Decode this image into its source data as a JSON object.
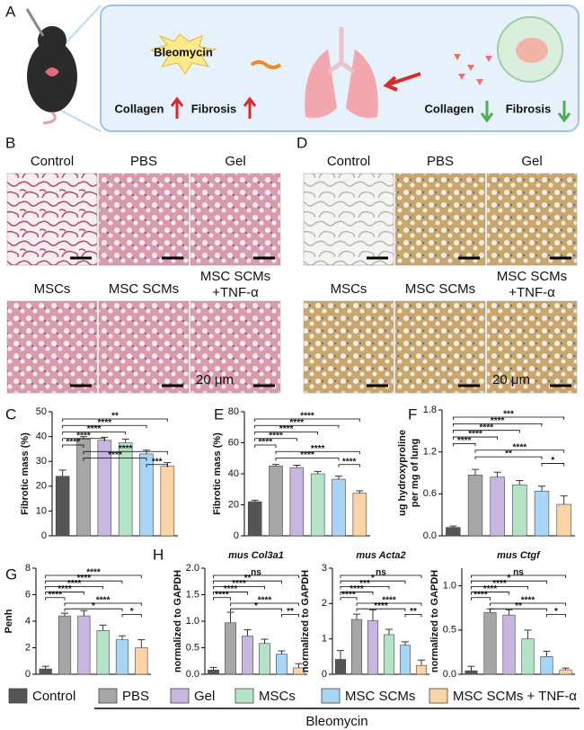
{
  "panel_labels": [
    "A",
    "B",
    "D"
  ],
  "panel_a": {
    "drug": "Bleomycin",
    "left_labels": [
      "Collagen",
      "Fibrosis"
    ],
    "right_labels": [
      "Collagen",
      "Fibrosis"
    ]
  },
  "panel_b": {
    "titles": [
      "Control",
      "PBS",
      "Gel",
      "MSCs",
      "MSC SCMs"
    ],
    "last_title": [
      "MSC SCMs",
      "+TNF-α"
    ],
    "scale_bar": "20 μm"
  },
  "panel_d": {
    "titles": [
      "Control",
      "PBS",
      "Gel",
      "MSCs",
      "MSC SCMs"
    ],
    "last_title": [
      "MSC SCMs",
      "+TNF-α"
    ],
    "scale_bar": "20 μm"
  },
  "legend": {
    "items": [
      {
        "name": "Control",
        "color": "#555555"
      },
      {
        "name": "PBS",
        "color": "#a6a6a6"
      },
      {
        "name": "Gel",
        "color": "#c9b6e0"
      },
      {
        "name": "MSCs",
        "color": "#b5e3c8"
      },
      {
        "name": "MSC SCMs",
        "color": "#a8d4f5"
      },
      {
        "name": "MSC SCMs + TNF-α",
        "color": "#fcd3a5"
      }
    ],
    "group": "Bleomycin"
  },
  "chart_data": [
    {
      "type": "bar",
      "panel": "C",
      "ylabel": [
        "Fibrotic mass (%)"
      ],
      "values": [
        24,
        39,
        38.5,
        37.5,
        33,
        28
      ],
      "errors": [
        2.5,
        1,
        1.2,
        1.5,
        1.5,
        1.5
      ],
      "ylim": [
        0,
        50
      ],
      "yticks": [
        0,
        10,
        20,
        30,
        40,
        50
      ],
      "significance": [
        "**",
        "****",
        "****",
        "****",
        "****",
        "****",
        "****",
        "***"
      ]
    },
    {
      "type": "bar",
      "panel": "E",
      "ylabel": [
        "Fibrotic mass (%)"
      ],
      "values": [
        22,
        45,
        44,
        40,
        36.5,
        27.5
      ],
      "errors": [
        1,
        1,
        1.5,
        1.5,
        2,
        1.5
      ],
      "ylim": [
        0,
        80
      ],
      "yticks": [
        0,
        20,
        40,
        60,
        80
      ],
      "significance": [
        "****",
        "****",
        "****",
        "****",
        "****",
        "****",
        "****",
        "****"
      ]
    },
    {
      "type": "bar",
      "panel": "F",
      "ylabel": [
        "ug hydroxyproline",
        "per mg of lung"
      ],
      "values": [
        0.12,
        0.87,
        0.84,
        0.73,
        0.64,
        0.45
      ],
      "errors": [
        0.02,
        0.08,
        0.07,
        0.06,
        0.07,
        0.12
      ],
      "ylim": [
        0,
        1.8
      ],
      "yticks": [
        {
          "value": 0,
          "label": "0.0"
        },
        0.6,
        1.2,
        1.8
      ],
      "significance": [
        "***",
        "****",
        "****",
        "****",
        "****",
        "****",
        "**",
        "*"
      ]
    },
    {
      "type": "bar",
      "panel": "G",
      "ylabel": [
        "Penh"
      ],
      "values": [
        0.4,
        4.4,
        4.4,
        3.3,
        2.6,
        2.0
      ],
      "errors": [
        0.2,
        0.2,
        0.4,
        0.4,
        0.3,
        0.6
      ],
      "ylim": [
        0,
        8
      ],
      "yticks": [
        0,
        2,
        4,
        6,
        8
      ],
      "significance": [
        "****",
        "****",
        "****",
        "****",
        "****",
        "****",
        "*",
        "*"
      ]
    },
    {
      "type": "bar",
      "panel": "H",
      "title": "mus Col3a1",
      "ylabel": [
        "normalized to GAPDH"
      ],
      "values": [
        0.08,
        0.97,
        0.72,
        0.58,
        0.38,
        0.12
      ],
      "errors": [
        0.05,
        0.2,
        0.12,
        0.08,
        0.06,
        0.08
      ],
      "ylim": [
        0,
        2
      ],
      "yticks": [
        {
          "value": 0,
          "label": "0.0"
        },
        0.5,
        {
          "value": 1,
          "label": "1.0"
        },
        1.5,
        {
          "value": 2,
          "label": "2.0"
        }
      ],
      "significance": [
        "ns",
        "**",
        "****",
        "****",
        "****",
        "****",
        "*",
        "**"
      ]
    },
    {
      "type": "bar",
      "title": "mus Acta2",
      "ylabel": [
        "normalized to GAPDH"
      ],
      "values": [
        0.42,
        1.55,
        1.52,
        1.12,
        0.82,
        0.25
      ],
      "errors": [
        0.25,
        0.15,
        0.3,
        0.15,
        0.1,
        0.15
      ],
      "ylim": [
        0,
        3
      ],
      "yticks": [
        0,
        1,
        2,
        3
      ],
      "significance": [
        "ns",
        "*",
        "***",
        "****",
        "****",
        "****",
        "****",
        "**"
      ]
    },
    {
      "type": "bar",
      "title": "mus Ctgf",
      "ylabel": [
        "normalized to GAPDH"
      ],
      "values": [
        0.04,
        0.7,
        0.67,
        0.4,
        0.2,
        0.05
      ],
      "errors": [
        0.05,
        0.04,
        0.06,
        0.1,
        0.06,
        0.02
      ],
      "ylim": [
        0,
        1.2
      ],
      "yticks": [
        {
          "value": 0,
          "label": "0.0"
        },
        0.5,
        {
          "value": 1,
          "label": "1.0"
        }
      ],
      "significance": [
        "ns",
        "*",
        "****",
        "****",
        "****",
        "****",
        "**",
        "*"
      ]
    }
  ]
}
